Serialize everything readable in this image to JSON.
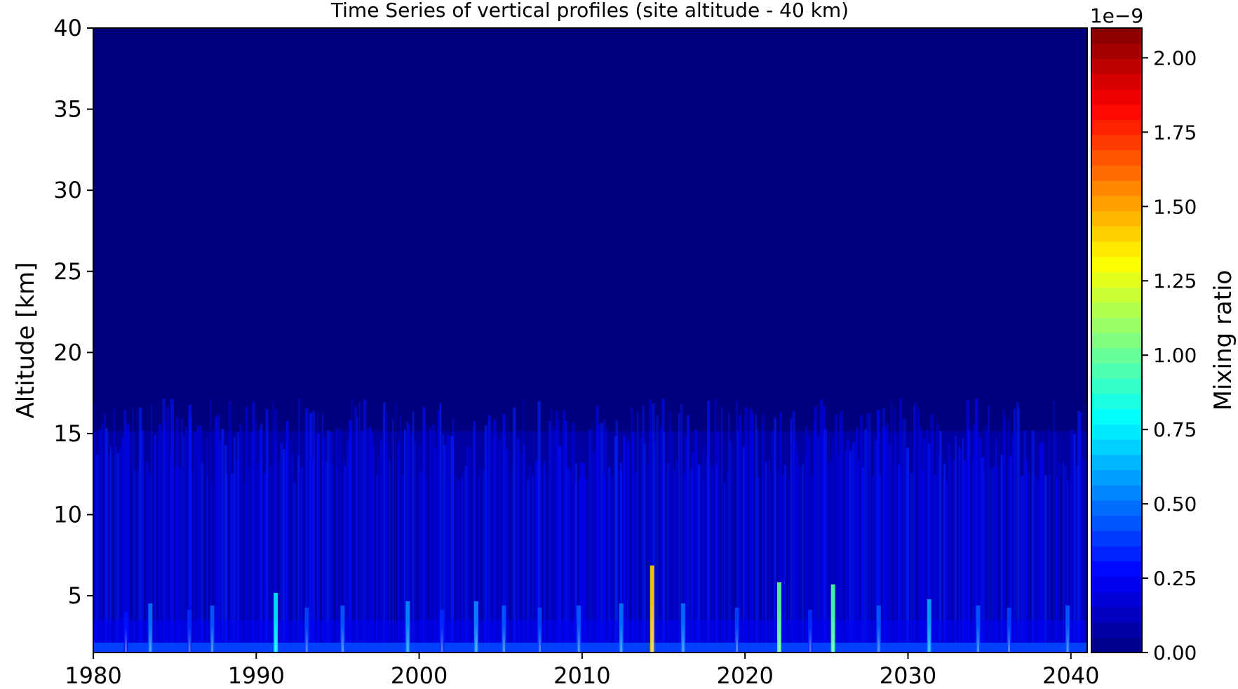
{
  "chart_data": {
    "type": "heatmap",
    "title": "Time Series of vertical profiles (site altitude - 40 km)",
    "xlabel": "",
    "ylabel": "Altitude [km]",
    "xlim": [
      1980,
      2041
    ],
    "ylim": [
      1.5,
      40
    ],
    "x_ticks": [
      1980,
      1990,
      2000,
      2010,
      2020,
      2030,
      2040
    ],
    "y_ticks": [
      5,
      10,
      15,
      20,
      25,
      30,
      35,
      40
    ],
    "colorbar": {
      "label": "Mixing ratio",
      "scale_note": "1e−9",
      "range": [
        0.0,
        2.1
      ],
      "ticks": [
        "0.00",
        "0.25",
        "0.50",
        "0.75",
        "1.00",
        "1.25",
        "1.50",
        "1.75",
        "2.00"
      ],
      "colormap": "jet",
      "levels": 41
    },
    "background_value": 0.0,
    "field_top_km": 16,
    "surface_spikes": [
      {
        "x": 2014.3,
        "value": 1.4
      },
      {
        "x": 2022.1,
        "value": 1.0
      },
      {
        "x": 2025.4,
        "value": 0.95
      },
      {
        "x": 1991.2,
        "value": 0.75
      },
      {
        "x": 2031.3,
        "value": 0.6
      },
      {
        "x": 2003.5,
        "value": 0.55
      },
      {
        "x": 1999.3,
        "value": 0.55
      },
      {
        "x": 2016.2,
        "value": 0.5
      },
      {
        "x": 1983.5,
        "value": 0.5
      },
      {
        "x": 2012.4,
        "value": 0.5
      },
      {
        "x": 2009.8,
        "value": 0.45
      },
      {
        "x": 2005.2,
        "value": 0.45
      },
      {
        "x": 1995.3,
        "value": 0.45
      },
      {
        "x": 1987.3,
        "value": 0.45
      },
      {
        "x": 2028.2,
        "value": 0.45
      },
      {
        "x": 2034.3,
        "value": 0.45
      },
      {
        "x": 2039.8,
        "value": 0.45
      },
      {
        "x": 1993.1,
        "value": 0.4
      },
      {
        "x": 2007.4,
        "value": 0.4
      },
      {
        "x": 2019.5,
        "value": 0.4
      },
      {
        "x": 2036.2,
        "value": 0.4
      },
      {
        "x": 2001.4,
        "value": 0.35
      },
      {
        "x": 1985.9,
        "value": 0.35
      },
      {
        "x": 2024.0,
        "value": 0.35
      },
      {
        "x": 1982.0,
        "value": 0.3
      }
    ]
  }
}
